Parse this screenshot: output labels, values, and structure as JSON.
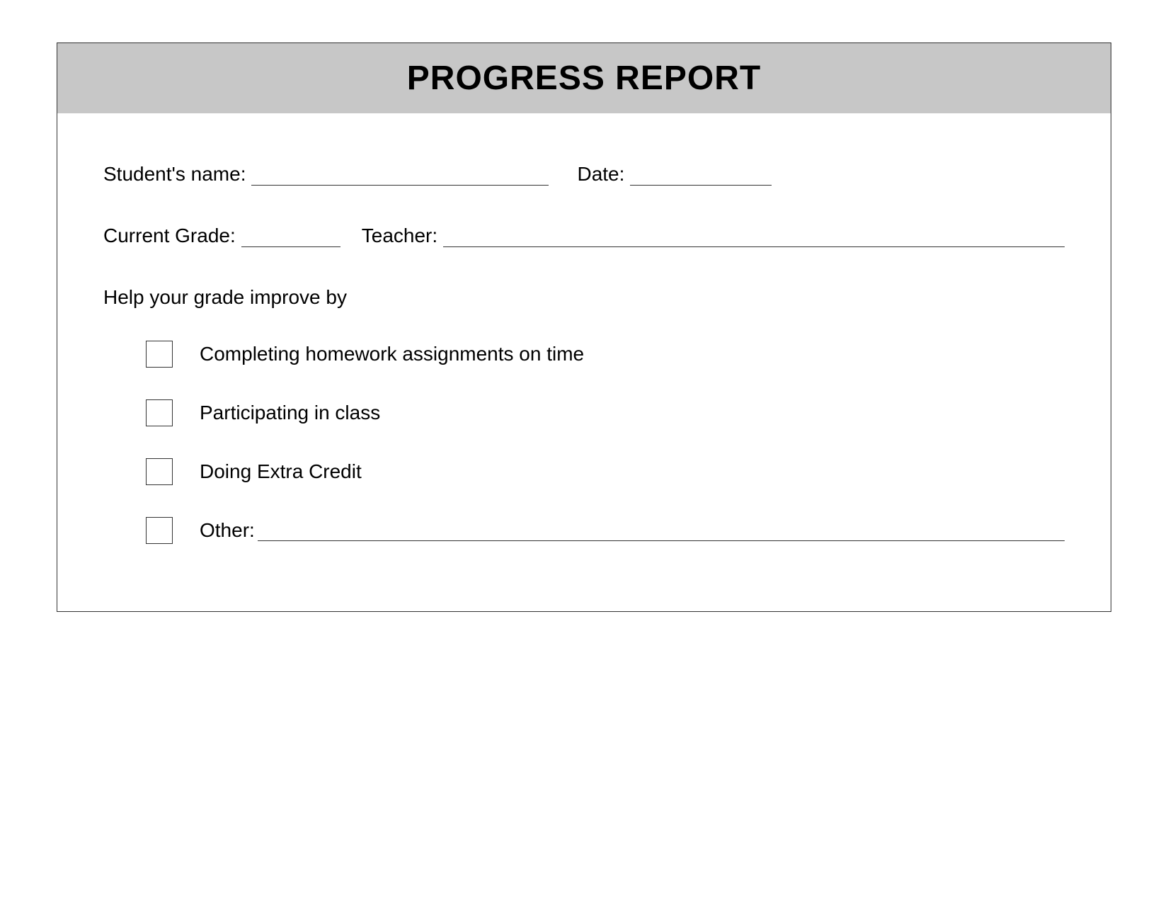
{
  "header": {
    "title": "PROGRESS REPORT"
  },
  "fields": {
    "student_label": "Student's name:",
    "date_label": "Date:",
    "grade_label": "Current Grade:",
    "teacher_label": "Teacher:"
  },
  "instruction": "Help your grade improve by",
  "checklist": {
    "items": [
      "Completing homework assignments on time",
      "Participating in class",
      "Doing Extra Credit"
    ],
    "other_label": "Other:"
  },
  "colors": {
    "header_bg": "#c7c7c7",
    "border": "#333333",
    "text": "#000000",
    "background": "#ffffff"
  },
  "typography": {
    "title_fontsize": 48,
    "body_fontsize": 28,
    "font_family": "Verdana"
  }
}
